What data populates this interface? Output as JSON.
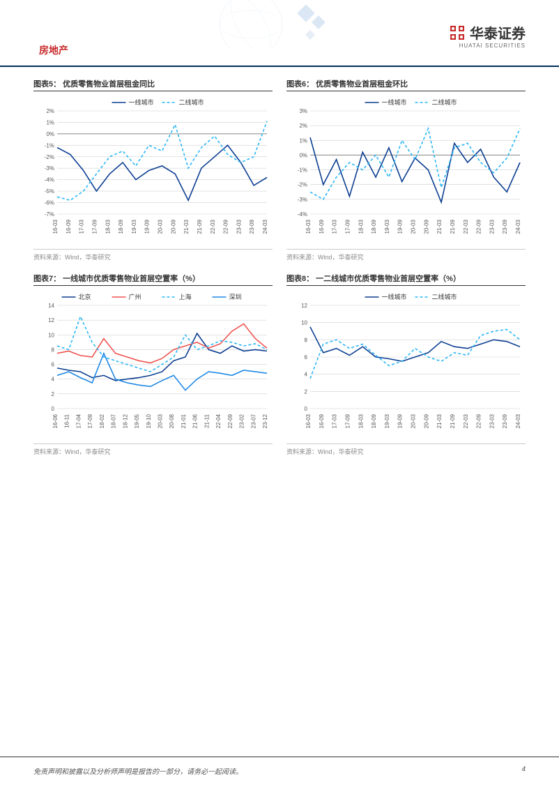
{
  "header": {
    "category": "房地产",
    "logo_cn": "华泰证券",
    "logo_en": "HUATAI SECURITIES"
  },
  "footer": {
    "disclaimer": "免责声明和披露以及分析师声明是报告的一部分，请务必一起阅读。",
    "page": "4"
  },
  "charts": {
    "c5": {
      "title": "图表5： 优质零售物业首层租金同比",
      "type": "line",
      "source": "资料来源：Wind，华泰研究",
      "legend": [
        {
          "label": "一线城市",
          "color": "#0b3d91",
          "dash": "none"
        },
        {
          "label": "二线城市",
          "color": "#29b6f6",
          "dash": "4,3"
        }
      ],
      "ylim": [
        -7,
        2
      ],
      "ytick_step": 1,
      "y_suffix": "%",
      "x_labels": [
        "16-03",
        "16-09",
        "17-03",
        "17-09",
        "18-03",
        "18-09",
        "19-03",
        "19-09",
        "20-03",
        "20-09",
        "21-03",
        "21-09",
        "22-03",
        "22-09",
        "23-03",
        "23-09",
        "24-03"
      ],
      "series": [
        {
          "color": "#0b3d91",
          "dash": "none",
          "values": [
            -1.2,
            -1.8,
            -3.2,
            -5.0,
            -3.5,
            -2.5,
            -4.0,
            -3.2,
            -2.8,
            -3.5,
            -5.8,
            -3.0,
            -2.0,
            -1.0,
            -2.5,
            -4.5,
            -3.8
          ]
        },
        {
          "color": "#29b6f6",
          "dash": "4,3",
          "values": [
            -5.5,
            -5.8,
            -5.0,
            -3.5,
            -2.0,
            -1.5,
            -2.8,
            -1.0,
            -1.5,
            0.8,
            -3.0,
            -1.2,
            -0.2,
            -1.8,
            -2.5,
            -2.0,
            1.1
          ]
        }
      ],
      "grid_color": "#d0d0d0",
      "background_color": "#ffffff",
      "label_fontsize": 8
    },
    "c6": {
      "title": "图表6： 优质零售物业首层租金环比",
      "type": "line",
      "source": "资料来源：Wind，华泰研究",
      "legend": [
        {
          "label": "一线城市",
          "color": "#0b3d91",
          "dash": "none"
        },
        {
          "label": "二线城市",
          "color": "#29b6f6",
          "dash": "4,3"
        }
      ],
      "ylim": [
        -4,
        3
      ],
      "ytick_step": 1,
      "y_suffix": "%",
      "x_labels": [
        "16-03",
        "16-09",
        "17-03",
        "17-09",
        "18-03",
        "18-09",
        "19-03",
        "19-09",
        "20-03",
        "20-09",
        "21-03",
        "21-09",
        "22-03",
        "22-09",
        "23-03",
        "23-09",
        "24-03"
      ],
      "series": [
        {
          "color": "#0b3d91",
          "dash": "none",
          "values": [
            1.2,
            -2.0,
            -0.3,
            -2.8,
            0.2,
            -1.5,
            0.5,
            -1.8,
            -0.2,
            -1.0,
            -3.2,
            0.8,
            -0.5,
            0.4,
            -1.5,
            -2.5,
            -0.5
          ]
        },
        {
          "color": "#29b6f6",
          "dash": "4,3",
          "values": [
            -2.5,
            -3.0,
            -1.5,
            -0.5,
            -1.0,
            0.0,
            -1.5,
            1.0,
            -0.3,
            1.8,
            -2.2,
            0.5,
            0.8,
            -0.5,
            -1.2,
            -0.2,
            1.8
          ]
        }
      ],
      "grid_color": "#d0d0d0",
      "background_color": "#ffffff",
      "label_fontsize": 8
    },
    "c7": {
      "title": "图表7： 一线城市优质零售物业首层空置率（%）",
      "type": "line",
      "source": "资料来源：Wind，华泰研究",
      "legend": [
        {
          "label": "北京",
          "color": "#0b3d91",
          "dash": "none"
        },
        {
          "label": "广州",
          "color": "#ef5350",
          "dash": "none"
        },
        {
          "label": "上海",
          "color": "#29b6f6",
          "dash": "4,3"
        },
        {
          "label": "深圳",
          "color": "#1e88e5",
          "dash": "none"
        }
      ],
      "ylim": [
        0,
        14
      ],
      "ytick_step": 2,
      "y_suffix": "",
      "x_labels": [
        "16-06",
        "16-11",
        "17-04",
        "17-09",
        "18-02",
        "18-07",
        "18-12",
        "19-05",
        "19-10",
        "20-03",
        "20-08",
        "21-01",
        "21-06",
        "21-11",
        "22-04",
        "22-09",
        "23-02",
        "23-07",
        "23-12"
      ],
      "series": [
        {
          "color": "#0b3d91",
          "dash": "none",
          "values": [
            5.5,
            5.2,
            5.0,
            4.2,
            4.5,
            3.8,
            4.0,
            4.2,
            4.5,
            5.0,
            6.5,
            7.0,
            10.2,
            8.0,
            7.5,
            8.5,
            7.8,
            8.0,
            7.8
          ]
        },
        {
          "color": "#ef5350",
          "dash": "none",
          "values": [
            7.5,
            7.8,
            7.2,
            7.0,
            9.5,
            7.5,
            7.0,
            6.5,
            6.2,
            6.8,
            8.0,
            8.5,
            9.0,
            8.2,
            8.8,
            10.5,
            11.5,
            9.5,
            8.2
          ]
        },
        {
          "color": "#29b6f6",
          "dash": "4,3",
          "values": [
            8.5,
            8.0,
            12.5,
            9.0,
            7.0,
            6.5,
            6.0,
            5.5,
            5.0,
            6.0,
            7.0,
            10.0,
            8.0,
            8.5,
            9.2,
            9.0,
            8.5,
            8.8,
            8.0
          ]
        },
        {
          "color": "#1e88e5",
          "dash": "none",
          "values": [
            4.5,
            5.0,
            4.2,
            3.5,
            7.5,
            4.0,
            3.5,
            3.2,
            3.0,
            3.8,
            4.5,
            2.5,
            4.0,
            5.0,
            4.8,
            4.5,
            5.2,
            5.0,
            4.8
          ]
        }
      ],
      "grid_color": "#d0d0d0",
      "background_color": "#ffffff",
      "label_fontsize": 8
    },
    "c8": {
      "title": "图表8： 一二线城市优质零售物业首层空置率（%）",
      "type": "line",
      "source": "资料来源：Wind，华泰研究",
      "legend": [
        {
          "label": "一线城市",
          "color": "#0b3d91",
          "dash": "none"
        },
        {
          "label": "二线城市",
          "color": "#29b6f6",
          "dash": "4,3"
        }
      ],
      "ylim": [
        0,
        12
      ],
      "ytick_step": 2,
      "y_suffix": "",
      "x_labels": [
        "16-03",
        "16-09",
        "17-03",
        "17-09",
        "18-03",
        "18-09",
        "19-03",
        "19-09",
        "20-03",
        "20-09",
        "21-03",
        "21-09",
        "22-03",
        "22-09",
        "23-03",
        "23-09",
        "24-03"
      ],
      "series": [
        {
          "color": "#0b3d91",
          "dash": "none",
          "values": [
            9.5,
            6.5,
            7.0,
            6.2,
            7.2,
            6.0,
            5.8,
            5.5,
            6.0,
            6.5,
            7.8,
            7.2,
            7.0,
            7.5,
            8.0,
            7.8,
            7.2
          ]
        },
        {
          "color": "#29b6f6",
          "dash": "4,3",
          "values": [
            3.5,
            7.5,
            8.0,
            7.0,
            7.5,
            6.2,
            5.0,
            5.5,
            7.0,
            6.0,
            5.5,
            6.5,
            6.2,
            8.5,
            9.0,
            9.2,
            8.0
          ]
        }
      ],
      "grid_color": "#d0d0d0",
      "background_color": "#ffffff",
      "label_fontsize": 8
    }
  }
}
